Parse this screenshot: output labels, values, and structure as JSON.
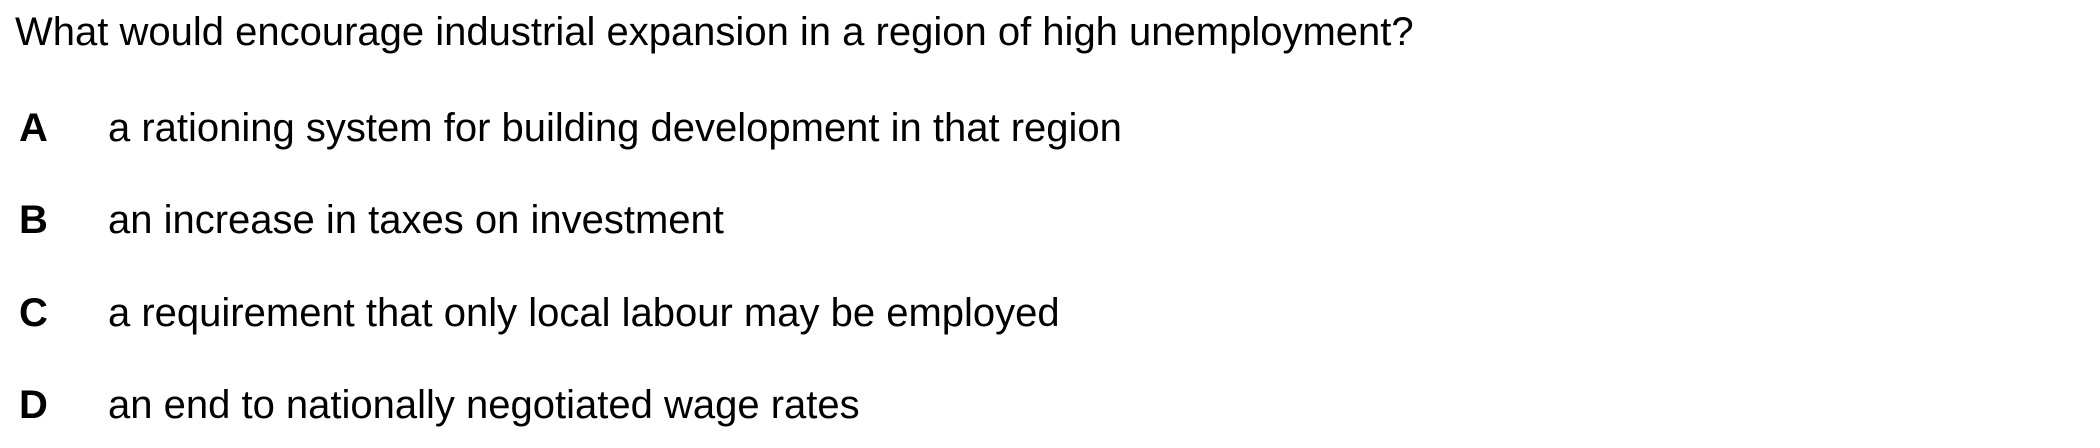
{
  "question": {
    "text": "What would encourage industrial expansion in a region of high unemployment?"
  },
  "options": [
    {
      "letter": "A",
      "text": "a rationing system for building development in that region"
    },
    {
      "letter": "B",
      "text": "an increase in taxes on investment"
    },
    {
      "letter": "C",
      "text": "a requirement that only local labour may be employed"
    },
    {
      "letter": "D",
      "text": "an end to nationally negotiated wage rates"
    }
  ]
}
